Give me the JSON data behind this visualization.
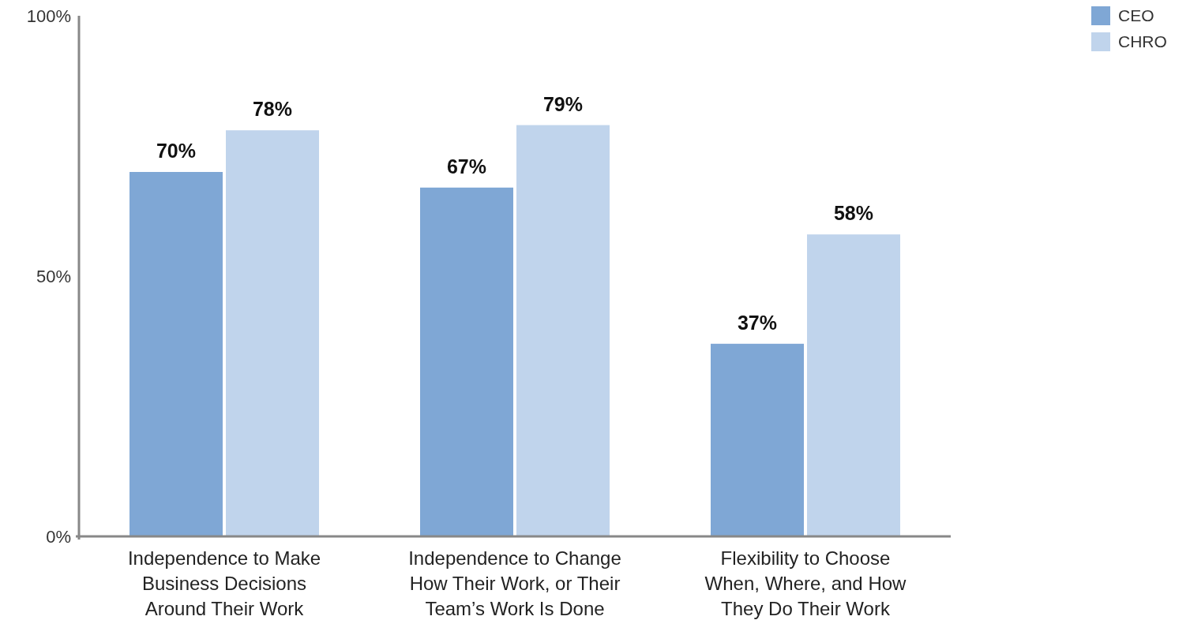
{
  "chart_data": {
    "type": "bar",
    "categories": [
      "Independence to Make Business Decisions Around Their Work",
      "Independence to Change How Their Work, or Their Team’s Work Is Done",
      "Flexibility to Choose When, Where, and How They Do Their Work"
    ],
    "series": [
      {
        "name": "CEO",
        "color": "#7fa7d5",
        "values": [
          70,
          67,
          37
        ],
        "value_labels": [
          "70%",
          "67%",
          "37%"
        ]
      },
      {
        "name": "CHRO",
        "color": "#c0d4ec",
        "values": [
          78,
          79,
          58
        ],
        "value_labels": [
          "78%",
          "79%",
          "58%"
        ]
      }
    ],
    "ylim": [
      0,
      100
    ],
    "yticks": [
      {
        "value": 0,
        "label": "0%"
      },
      {
        "value": 50,
        "label": "50%"
      },
      {
        "value": 100,
        "label": "100%"
      }
    ],
    "grid": false,
    "legend": "top right"
  }
}
